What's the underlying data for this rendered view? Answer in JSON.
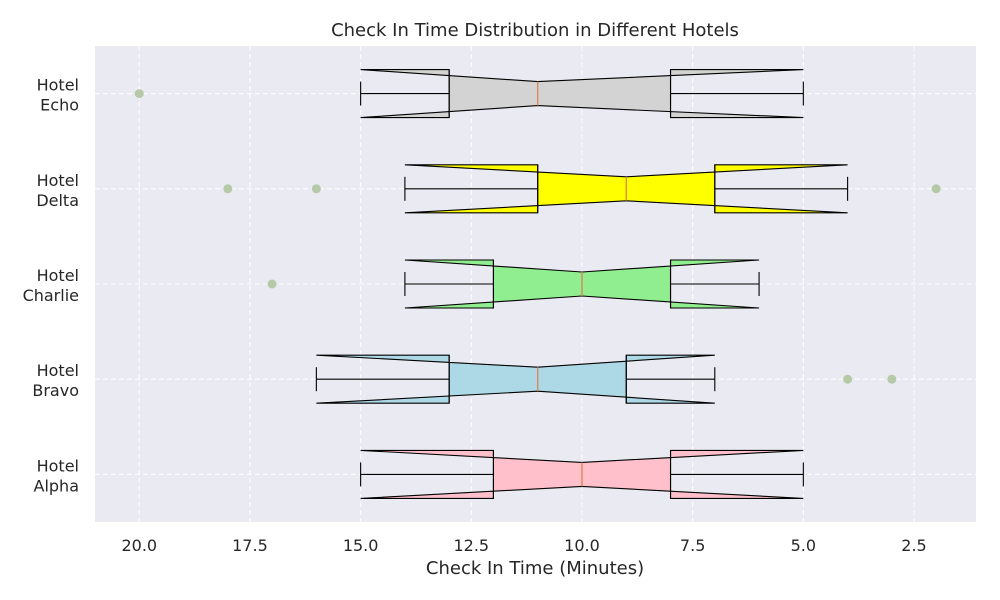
{
  "chart_data": {
    "type": "boxplot-horizontal-notched",
    "title": "Check In Time Distribution in Different Hotels",
    "xlabel": "Check In Time (Minutes)",
    "ylabel": "",
    "xlim": [
      21,
      1.1
    ],
    "x_inverted": true,
    "xticks": [
      20.0,
      17.5,
      15.0,
      12.5,
      10.0,
      7.5,
      5.0,
      2.5
    ],
    "xtick_labels": [
      "20.0",
      "17.5",
      "15.0",
      "12.5",
      "10.0",
      "7.5",
      "5.0",
      "2.5"
    ],
    "grid": true,
    "background": "#eaeaf2",
    "outlier_color": "#b5c9a8",
    "median_color": "#dd8452",
    "series": [
      {
        "label_lines": [
          "Hotel",
          "Alpha"
        ],
        "color": "#ffc0cb",
        "whisker_low": 5,
        "q1": 8,
        "median": 10,
        "q3": 12,
        "whisker_high": 15,
        "notch_low": 5,
        "notch_high": 15,
        "outliers": []
      },
      {
        "label_lines": [
          "Hotel",
          "Bravo"
        ],
        "color": "#add8e6",
        "whisker_low": 7,
        "q1": 9,
        "median": 11,
        "q3": 13,
        "whisker_high": 16,
        "notch_low": 7,
        "notch_high": 16,
        "outliers": [
          4,
          3
        ]
      },
      {
        "label_lines": [
          "Hotel",
          "Charlie"
        ],
        "color": "#90ee90",
        "whisker_low": 6,
        "q1": 8,
        "median": 10,
        "q3": 12,
        "whisker_high": 14,
        "notch_low": 6,
        "notch_high": 14,
        "outliers": [
          17
        ]
      },
      {
        "label_lines": [
          "Hotel",
          "Delta"
        ],
        "color": "#ffff00",
        "whisker_low": 4,
        "q1": 7,
        "median": 9,
        "q3": 11,
        "whisker_high": 14,
        "notch_low": 4,
        "notch_high": 14,
        "outliers": [
          18,
          16,
          2
        ]
      },
      {
        "label_lines": [
          "Hotel",
          "Echo"
        ],
        "color": "#d3d3d3",
        "whisker_low": 5,
        "q1": 8,
        "median": 11,
        "q3": 13,
        "whisker_high": 15,
        "notch_low": 5,
        "notch_high": 15,
        "outliers": [
          20
        ]
      }
    ]
  }
}
